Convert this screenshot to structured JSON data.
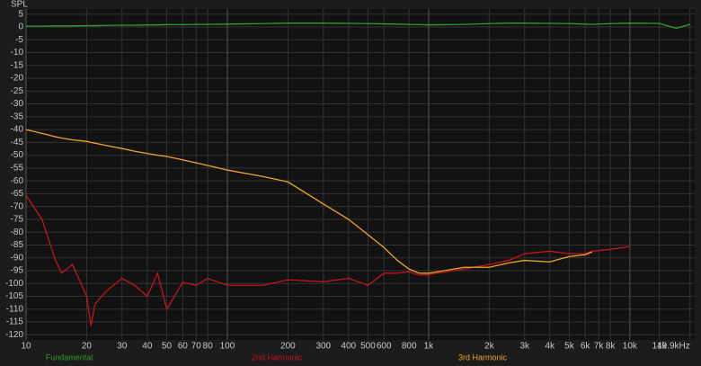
{
  "chart_data": {
    "type": "line",
    "y_label": "SPL",
    "log_x": true,
    "grid": true,
    "xlim": [
      10,
      21000
    ],
    "ylim": [
      -122,
      7
    ],
    "xticks": [
      10,
      20,
      30,
      40,
      50,
      60,
      70,
      80,
      100,
      200,
      300,
      400,
      500,
      600,
      800,
      {
        "value": 1000,
        "label": "1k"
      },
      {
        "value": 2000,
        "label": "2k"
      },
      {
        "value": 3000,
        "label": "3k"
      },
      {
        "value": 4000,
        "label": "4k"
      },
      {
        "value": 5000,
        "label": "5k"
      },
      {
        "value": 6000,
        "label": "6k"
      },
      {
        "value": 7000,
        "label": "7k"
      },
      {
        "value": 8000,
        "label": "8k"
      },
      {
        "value": 10000,
        "label": "10k"
      },
      {
        "value": 14000,
        "label": "14k"
      },
      {
        "value": 19900,
        "label": "19.9kHz"
      }
    ],
    "yticks": [
      5,
      0,
      -5,
      -10,
      -15,
      -20,
      -25,
      -30,
      -35,
      -40,
      -45,
      -50,
      -55,
      -60,
      -65,
      -70,
      -75,
      -80,
      -85,
      -90,
      -95,
      -100,
      -105,
      -110,
      -115,
      -120
    ],
    "x": [
      10,
      12,
      14,
      15,
      17,
      20,
      21,
      22,
      25,
      30,
      35,
      40,
      45,
      50,
      60,
      70,
      80,
      100,
      150,
      200,
      300,
      400,
      500,
      600,
      700,
      800,
      900,
      1000,
      1500,
      2000,
      2500,
      3000,
      4000,
      5000,
      6000,
      6500,
      8000,
      10000,
      14000,
      17000,
      19900
    ],
    "series": [
      {
        "name": "Fundamental",
        "color": "#2e9e2e",
        "values": [
          0.3,
          0.3,
          0.4,
          0.4,
          0.4,
          0.5,
          0.5,
          0.5,
          0.6,
          0.7,
          0.7,
          0.8,
          0.8,
          0.9,
          0.9,
          1.0,
          1.0,
          1.1,
          1.3,
          1.5,
          1.5,
          1.4,
          1.3,
          1.2,
          1.1,
          1.0,
          0.9,
          0.8,
          1.0,
          1.3,
          1.5,
          1.5,
          1.4,
          1.3,
          1.1,
          1.0,
          1.3,
          1.5,
          1.4,
          -0.5,
          1.0
        ]
      },
      {
        "name": "2nd Harmonic",
        "color": "#c4141c",
        "values": [
          -65.6,
          -75,
          -91,
          -96,
          -92.6,
          -105,
          -116.5,
          -108,
          -103,
          -98,
          -101,
          -105,
          -96,
          -110,
          -99.6,
          -100.7,
          -98,
          -100.7,
          -100.7,
          -98.6,
          -99.3,
          -98,
          -100.7,
          -96,
          -96,
          -95.4,
          -96.8,
          -96.5,
          -94.4,
          -92.6,
          -91,
          -88.4,
          -87.4,
          -88.4,
          -88.4,
          -87.4,
          -86.7,
          -85.6,
          null,
          null,
          null
        ]
      },
      {
        "name": "3rd Harmonic",
        "color": "#f0a526",
        "values": [
          -40,
          -41.5,
          -42.8,
          -43.3,
          -44,
          -44.6,
          -45,
          -45.3,
          -46.2,
          -47.4,
          -48.5,
          -49.3,
          -50,
          -50.5,
          -51.8,
          -53,
          -54,
          -55.8,
          -58.3,
          -60.4,
          -69,
          -75,
          -81,
          -86,
          -91,
          -94.4,
          -96,
          -96,
          -93.7,
          -93.7,
          -92,
          -91,
          -91.6,
          -89.5,
          -88.8,
          -87.7,
          null,
          null,
          null,
          null,
          null
        ]
      }
    ]
  }
}
